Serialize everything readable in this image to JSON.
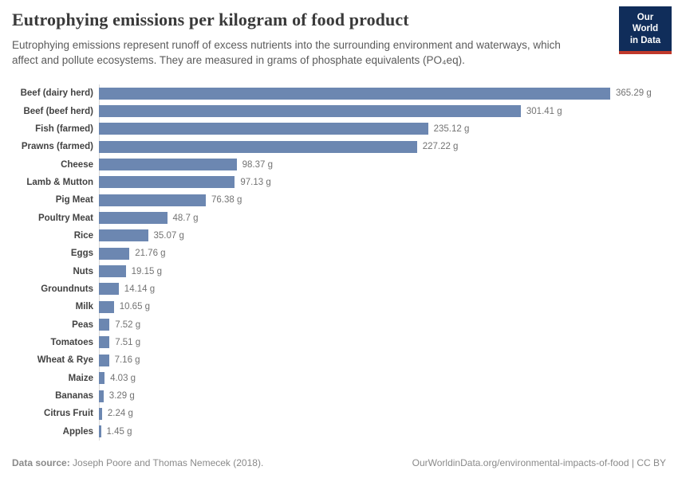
{
  "header": {
    "title": "Eutrophying emissions per kilogram of food product",
    "subtitle": "Eutrophying emissions represent runoff of excess nutrients into the surrounding environment and waterways, which affect and pollute ecosystems. They are measured in grams of phosphate equivalents (PO₄eq).",
    "logo": {
      "line1": "Our World",
      "line2": "in Data"
    }
  },
  "chart_data": {
    "type": "bar",
    "orientation": "horizontal",
    "title": "Eutrophying emissions per kilogram of food product",
    "xlabel": "",
    "ylabel": "",
    "unit": "g",
    "xlim": [
      0,
      380
    ],
    "grid": false,
    "legend": "none",
    "bar_color": "#6c87b1",
    "axis_line_color": "#d9d9d9",
    "categories": [
      "Beef (dairy herd)",
      "Beef (beef herd)",
      "Fish (farmed)",
      "Prawns (farmed)",
      "Cheese",
      "Lamb & Mutton",
      "Pig Meat",
      "Poultry Meat",
      "Rice",
      "Eggs",
      "Nuts",
      "Groundnuts",
      "Milk",
      "Peas",
      "Tomatoes",
      "Wheat & Rye",
      "Maize",
      "Bananas",
      "Citrus Fruit",
      "Apples"
    ],
    "values": [
      365.29,
      301.41,
      235.12,
      227.22,
      98.37,
      97.13,
      76.38,
      48.7,
      35.07,
      21.76,
      19.15,
      14.14,
      10.65,
      7.52,
      7.51,
      7.16,
      4.03,
      3.29,
      2.24,
      1.45
    ],
    "value_labels": [
      "365.29 g",
      "301.41 g",
      "235.12 g",
      "227.22 g",
      "98.37 g",
      "97.13 g",
      "76.38 g",
      "48.7 g",
      "35.07 g",
      "21.76 g",
      "19.15 g",
      "14.14 g",
      "10.65 g",
      "7.52 g",
      "7.51 g",
      "7.16 g",
      "4.03 g",
      "3.29 g",
      "2.24 g",
      "1.45 g"
    ]
  },
  "footer": {
    "datasource_label": "Data source:",
    "datasource_value": " Joseph Poore and Thomas Nemecek (2018).",
    "license": "OurWorldinData.org/environmental-impacts-of-food | CC BY"
  }
}
